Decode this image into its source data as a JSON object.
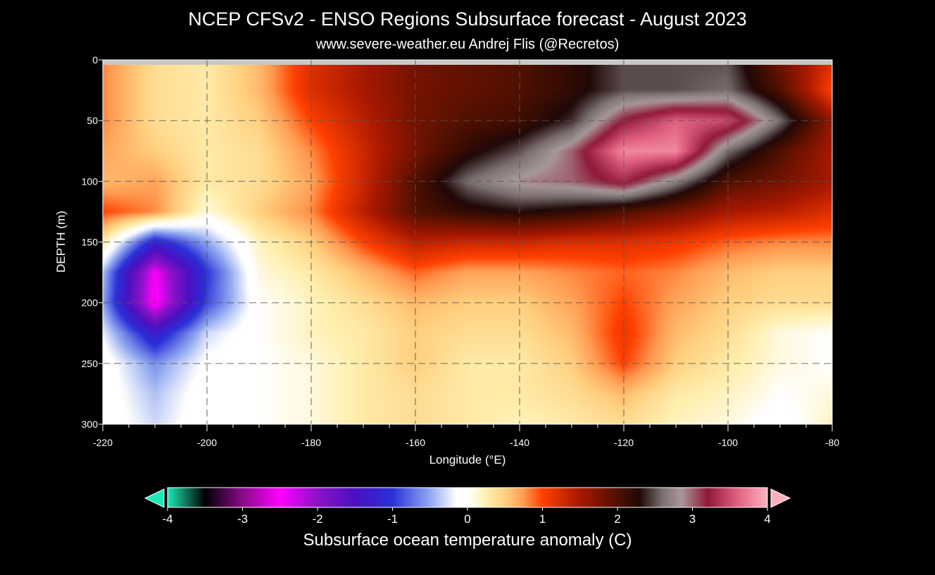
{
  "chart_data": {
    "type": "heatmap",
    "title": "NCEP CFSv2 - ENSO Regions Subsurface forecast - August 2023",
    "subtitle": "www.severe-weather.eu   Andrej Flis (@Recretos)",
    "xlabel": "Longitude (°E)",
    "ylabel": "DEPTH (m)",
    "xlim": [
      -220,
      -80
    ],
    "ylim": [
      0,
      300
    ],
    "y_inverted": true,
    "grid": true,
    "x_ticks": [
      -220,
      -200,
      -180,
      -160,
      -140,
      -120,
      -100,
      -80
    ],
    "y_ticks": [
      0,
      50,
      100,
      150,
      200,
      250,
      300
    ],
    "x_tick_labels": [
      "-220",
      "-200",
      "-180",
      "-160",
      "-140",
      "-120",
      "-100",
      "-80"
    ],
    "y_tick_labels": [
      "0",
      "50",
      "100",
      "150",
      "200",
      "250",
      "300"
    ],
    "longitudes": [
      -220,
      -210,
      -200,
      -190,
      -180,
      -170,
      -160,
      -150,
      -140,
      -130,
      -120,
      -110,
      -100,
      -90,
      -80
    ],
    "depths": [
      0,
      25,
      50,
      75,
      100,
      125,
      150,
      175,
      200,
      225,
      250,
      275,
      300
    ],
    "anomaly": [
      [
        0.8,
        0.4,
        0.3,
        0.6,
        1.2,
        1.5,
        1.8,
        1.9,
        2.0,
        2.2,
        2.5,
        2.5,
        2.5,
        1.8,
        1.2
      ],
      [
        0.8,
        0.4,
        0.3,
        0.6,
        1.2,
        1.5,
        1.8,
        1.9,
        2.0,
        2.2,
        2.5,
        2.5,
        2.6,
        2.0,
        1.0
      ],
      [
        0.8,
        0.4,
        0.3,
        0.5,
        1.0,
        1.4,
        1.8,
        2.0,
        2.1,
        2.4,
        3.2,
        3.6,
        3.5,
        2.6,
        1.6
      ],
      [
        0.7,
        0.5,
        0.3,
        0.4,
        0.8,
        1.3,
        1.8,
        2.2,
        2.5,
        3.0,
        3.8,
        3.8,
        2.6,
        2.0,
        1.5
      ],
      [
        0.6,
        0.7,
        0.3,
        0.4,
        0.7,
        1.3,
        2.0,
        2.6,
        2.9,
        3.0,
        3.3,
        2.7,
        2.0,
        1.8,
        1.5
      ],
      [
        1.0,
        0.8,
        0.1,
        0.5,
        0.8,
        1.4,
        2.0,
        2.2,
        2.3,
        2.2,
        2.0,
        1.8,
        1.5,
        1.4,
        1.2
      ],
      [
        0.3,
        -1.2,
        -0.5,
        0.2,
        0.5,
        1.0,
        1.4,
        1.3,
        1.3,
        1.2,
        1.2,
        1.1,
        0.9,
        0.8,
        0.8
      ],
      [
        -0.4,
        -2.5,
        -1.0,
        0.1,
        0.3,
        0.6,
        0.9,
        0.7,
        0.7,
        0.8,
        0.9,
        0.8,
        0.6,
        0.5,
        0.5
      ],
      [
        -0.5,
        -2.6,
        -0.9,
        0.0,
        0.2,
        0.4,
        0.6,
        0.5,
        0.5,
        0.7,
        1.0,
        0.7,
        0.5,
        0.4,
        0.4
      ],
      [
        -0.2,
        -1.3,
        -0.3,
        0.0,
        0.2,
        0.3,
        0.5,
        0.4,
        0.4,
        0.6,
        1.1,
        0.6,
        0.4,
        0.1,
        0.0
      ],
      [
        0.0,
        -0.6,
        -0.1,
        0.0,
        0.1,
        0.3,
        0.5,
        0.3,
        0.3,
        0.5,
        1.0,
        0.5,
        0.3,
        0.1,
        0.0
      ],
      [
        0.0,
        -0.4,
        0.0,
        0.0,
        0.1,
        0.3,
        0.4,
        0.3,
        0.3,
        0.4,
        0.6,
        0.3,
        0.2,
        0.0,
        0.1
      ],
      [
        0.0,
        -0.3,
        0.0,
        0.0,
        0.1,
        0.3,
        0.4,
        0.3,
        0.2,
        0.3,
        0.4,
        0.2,
        0.1,
        -0.1,
        0.2
      ]
    ],
    "colorbar": {
      "label": "Subsurface ocean temperature anomaly (C)",
      "range": [
        -4,
        4
      ],
      "ticks": [
        -4,
        -3,
        -2,
        -1,
        0,
        1,
        2,
        3,
        4
      ],
      "tick_labels": [
        "-4",
        "-3",
        "-2",
        "-1",
        "0",
        "1",
        "2",
        "3",
        "4"
      ],
      "extend": "both",
      "stops": [
        {
          "v": -4.0,
          "c": "#1de9b6"
        },
        {
          "v": -3.5,
          "c": "#000000"
        },
        {
          "v": -3.0,
          "c": "#8a0a8a"
        },
        {
          "v": -2.5,
          "c": "#ff00ff"
        },
        {
          "v": -2.0,
          "c": "#8a12c8"
        },
        {
          "v": -1.5,
          "c": "#4a10c0"
        },
        {
          "v": -1.0,
          "c": "#2a30d8"
        },
        {
          "v": -0.5,
          "c": "#90a8f0"
        },
        {
          "v": -0.15,
          "c": "#ffffff"
        },
        {
          "v": 0.0,
          "c": "#ffffff"
        },
        {
          "v": 0.25,
          "c": "#fff0b0"
        },
        {
          "v": 0.5,
          "c": "#ffd080"
        },
        {
          "v": 0.75,
          "c": "#ff9a50"
        },
        {
          "v": 1.0,
          "c": "#ff4000"
        },
        {
          "v": 1.5,
          "c": "#a81800"
        },
        {
          "v": 2.0,
          "c": "#501000"
        },
        {
          "v": 2.3,
          "c": "#200808"
        },
        {
          "v": 2.6,
          "c": "#7a7070"
        },
        {
          "v": 2.85,
          "c": "#a89898"
        },
        {
          "v": 3.2,
          "c": "#901838"
        },
        {
          "v": 3.6,
          "c": "#e06080"
        },
        {
          "v": 4.0,
          "c": "#ffb0c0"
        }
      ]
    }
  }
}
